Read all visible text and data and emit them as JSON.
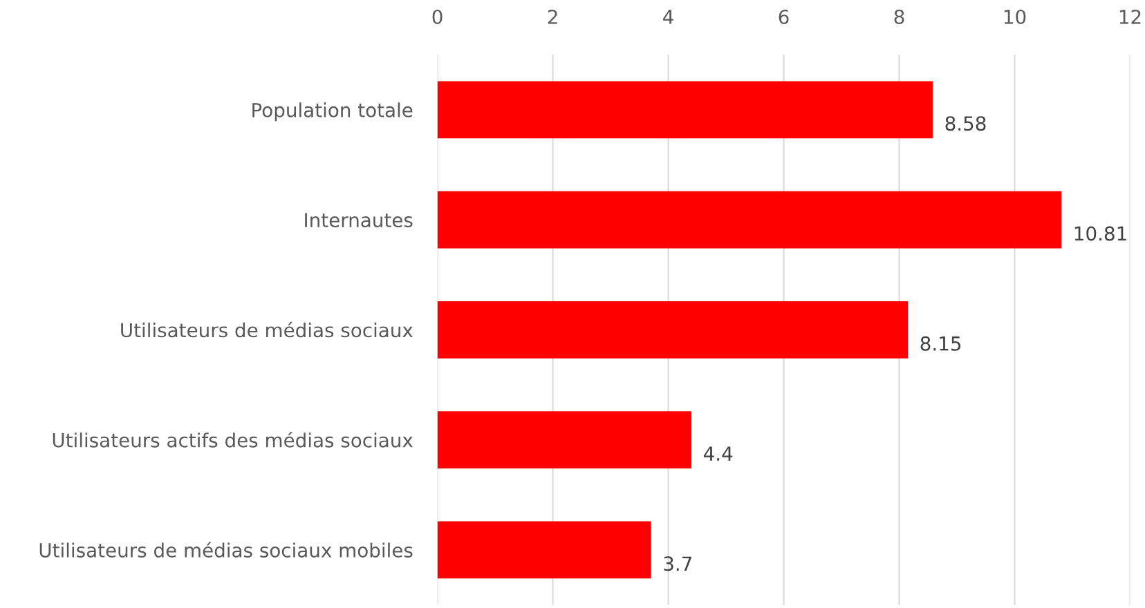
{
  "chart_data": {
    "type": "bar",
    "orientation": "horizontal",
    "categories": [
      "Population totale",
      "Internautes",
      "Utilisateurs de médias sociaux",
      "Utilisateurs actifs des médias sociaux",
      "Utilisateurs de médias sociaux mobiles"
    ],
    "values": [
      8.58,
      10.81,
      8.15,
      4.4,
      3.7
    ],
    "color": "#ff0000",
    "xlim": [
      0,
      12
    ],
    "xticks": [
      0,
      2,
      4,
      6,
      8,
      10,
      12
    ],
    "grid": "x",
    "data_labels": true,
    "legend": false
  }
}
